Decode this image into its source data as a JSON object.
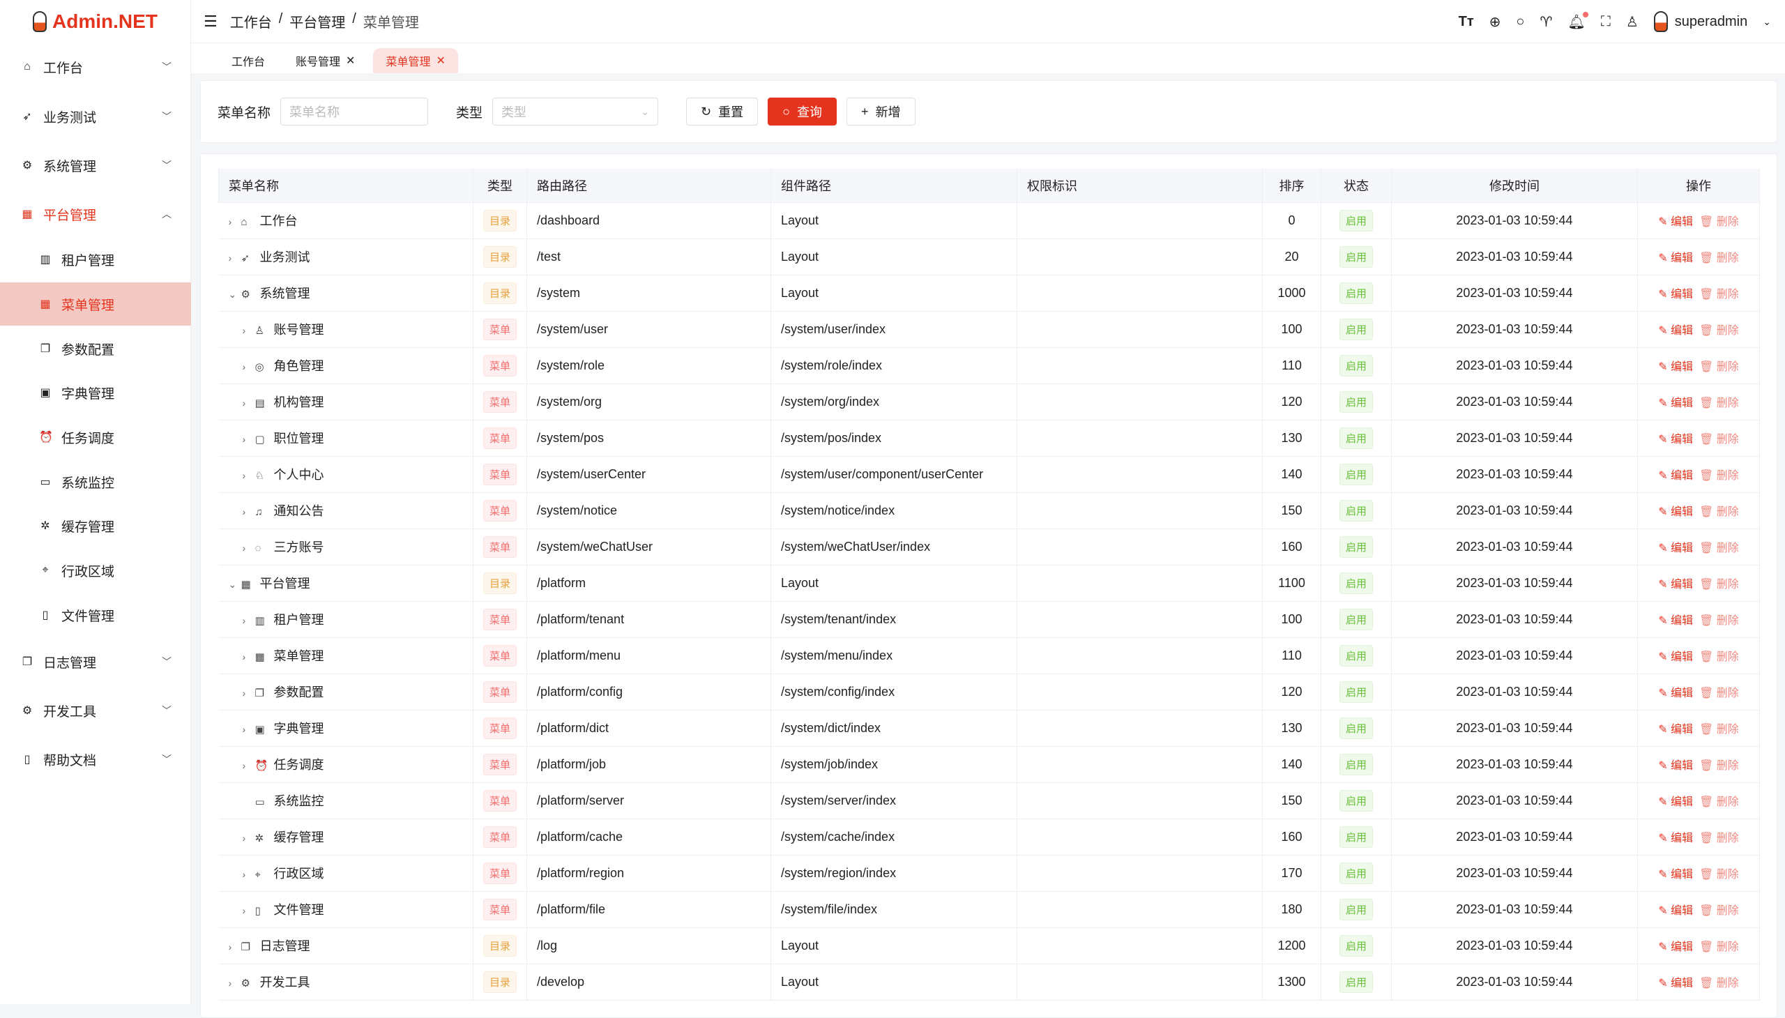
{
  "app": {
    "logo": "Admin.NET"
  },
  "header": {
    "breadcrumb": [
      "工作台",
      "平台管理",
      "菜单管理"
    ],
    "user": "superadmin"
  },
  "sidebar": {
    "items": [
      {
        "label": "工作台",
        "icon": "home-icon",
        "level": 0
      },
      {
        "label": "业务测试",
        "icon": "send-icon",
        "level": 0
      },
      {
        "label": "系统管理",
        "icon": "gear-icon",
        "level": 0
      },
      {
        "label": "平台管理",
        "icon": "grid-icon",
        "level": 0,
        "open": true
      },
      {
        "label": "租户管理",
        "icon": "building-icon",
        "level": 1
      },
      {
        "label": "菜单管理",
        "icon": "grid-icon",
        "level": 1,
        "active": true
      },
      {
        "label": "参数配置",
        "icon": "copy-icon",
        "level": 1
      },
      {
        "label": "字典管理",
        "icon": "book-icon",
        "level": 1
      },
      {
        "label": "任务调度",
        "icon": "alarm-icon",
        "level": 1
      },
      {
        "label": "系统监控",
        "icon": "monitor-icon",
        "level": 1
      },
      {
        "label": "缓存管理",
        "icon": "loading-icon",
        "level": 1
      },
      {
        "label": "行政区域",
        "icon": "location-icon",
        "level": 1
      },
      {
        "label": "文件管理",
        "icon": "document-icon",
        "level": 1
      },
      {
        "label": "日志管理",
        "icon": "log-icon",
        "level": 0
      },
      {
        "label": "开发工具",
        "icon": "tool-icon",
        "level": 0
      },
      {
        "label": "帮助文档",
        "icon": "help-icon",
        "level": 0
      }
    ]
  },
  "tabs": [
    {
      "label": "工作台"
    },
    {
      "label": "账号管理",
      "closable": true
    },
    {
      "label": "菜单管理",
      "closable": true,
      "active": true
    }
  ],
  "search": {
    "name_label": "菜单名称",
    "name_placeholder": "菜单名称",
    "type_label": "类型",
    "type_placeholder": "类型",
    "reset": "重置",
    "query": "查询",
    "add": "新增"
  },
  "table": {
    "columns": [
      "菜单名称",
      "类型",
      "路由路径",
      "组件路径",
      "权限标识",
      "排序",
      "状态",
      "修改时间",
      "操作"
    ],
    "edit": "编辑",
    "delete": "删除",
    "rows": [
      {
        "name": "工作台",
        "icon": "⌂",
        "lvl": 0,
        "exp": ">",
        "type": "目录",
        "path": "/dashboard",
        "comp": "Layout",
        "sort": "0"
      },
      {
        "name": "业务测试",
        "icon": "➶",
        "lvl": 0,
        "exp": ">",
        "type": "目录",
        "path": "/test",
        "comp": "Layout",
        "sort": "20"
      },
      {
        "name": "系统管理",
        "icon": "⚙",
        "lvl": 0,
        "exp": "v",
        "type": "目录",
        "path": "/system",
        "comp": "Layout",
        "sort": "1000"
      },
      {
        "name": "账号管理",
        "icon": "♙",
        "lvl": 1,
        "exp": ">",
        "type": "菜单",
        "path": "/system/user",
        "comp": "/system/user/index",
        "sort": "100"
      },
      {
        "name": "角色管理",
        "icon": "◎",
        "lvl": 1,
        "exp": ">",
        "type": "菜单",
        "path": "/system/role",
        "comp": "/system/role/index",
        "sort": "110"
      },
      {
        "name": "机构管理",
        "icon": "▤",
        "lvl": 1,
        "exp": ">",
        "type": "菜单",
        "path": "/system/org",
        "comp": "/system/org/index",
        "sort": "120"
      },
      {
        "name": "职位管理",
        "icon": "▢",
        "lvl": 1,
        "exp": ">",
        "type": "菜单",
        "path": "/system/pos",
        "comp": "/system/pos/index",
        "sort": "130"
      },
      {
        "name": "个人中心",
        "icon": "♘",
        "lvl": 1,
        "exp": ">",
        "type": "菜单",
        "path": "/system/userCenter",
        "comp": "/system/user/component/userCenter",
        "sort": "140"
      },
      {
        "name": "通知公告",
        "icon": "♫",
        "lvl": 1,
        "exp": ">",
        "type": "菜单",
        "path": "/system/notice",
        "comp": "/system/notice/index",
        "sort": "150"
      },
      {
        "name": "三方账号",
        "icon": "◌",
        "lvl": 1,
        "exp": ">",
        "type": "菜单",
        "path": "/system/weChatUser",
        "comp": "/system/weChatUser/index",
        "sort": "160"
      },
      {
        "name": "平台管理",
        "icon": "▦",
        "lvl": 0,
        "exp": "v",
        "type": "目录",
        "path": "/platform",
        "comp": "Layout",
        "sort": "1100"
      },
      {
        "name": "租户管理",
        "icon": "▥",
        "lvl": 1,
        "exp": ">",
        "type": "菜单",
        "path": "/platform/tenant",
        "comp": "/system/tenant/index",
        "sort": "100"
      },
      {
        "name": "菜单管理",
        "icon": "▦",
        "lvl": 1,
        "exp": ">",
        "type": "菜单",
        "path": "/platform/menu",
        "comp": "/system/menu/index",
        "sort": "110"
      },
      {
        "name": "参数配置",
        "icon": "❐",
        "lvl": 1,
        "exp": ">",
        "type": "菜单",
        "path": "/platform/config",
        "comp": "/system/config/index",
        "sort": "120"
      },
      {
        "name": "字典管理",
        "icon": "▣",
        "lvl": 1,
        "exp": ">",
        "type": "菜单",
        "path": "/platform/dict",
        "comp": "/system/dict/index",
        "sort": "130"
      },
      {
        "name": "任务调度",
        "icon": "⏰",
        "lvl": 1,
        "exp": ">",
        "type": "菜单",
        "path": "/platform/job",
        "comp": "/system/job/index",
        "sort": "140"
      },
      {
        "name": "系统监控",
        "icon": "▭",
        "lvl": 1,
        "exp": "",
        "type": "菜单",
        "path": "/platform/server",
        "comp": "/system/server/index",
        "sort": "150"
      },
      {
        "name": "缓存管理",
        "icon": "✲",
        "lvl": 1,
        "exp": ">",
        "type": "菜单",
        "path": "/platform/cache",
        "comp": "/system/cache/index",
        "sort": "160"
      },
      {
        "name": "行政区域",
        "icon": "⌖",
        "lvl": 1,
        "exp": ">",
        "type": "菜单",
        "path": "/platform/region",
        "comp": "/system/region/index",
        "sort": "170"
      },
      {
        "name": "文件管理",
        "icon": "▯",
        "lvl": 1,
        "exp": ">",
        "type": "菜单",
        "path": "/platform/file",
        "comp": "/system/file/index",
        "sort": "180"
      },
      {
        "name": "日志管理",
        "icon": "❐",
        "lvl": 0,
        "exp": ">",
        "type": "目录",
        "path": "/log",
        "comp": "Layout",
        "sort": "1200"
      },
      {
        "name": "开发工具",
        "icon": "⚙",
        "lvl": 0,
        "exp": ">",
        "type": "目录",
        "path": "/develop",
        "comp": "Layout",
        "sort": "1300"
      }
    ],
    "status": "启用",
    "time": "2023-01-03 10:59:44"
  },
  "colors": {
    "accent": "#e4341d",
    "dir_tag": "#e6a23c",
    "menu_tag": "#f56c6c",
    "status": "#67c23a"
  }
}
